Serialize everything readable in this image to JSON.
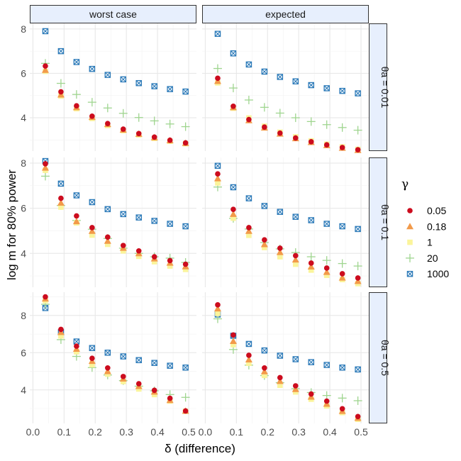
{
  "chart_data": {
    "type": "scatter",
    "xlabel": "δ (difference)",
    "ylabel": "log m for 80% power",
    "x_ticks": [
      "0.0",
      "0.1",
      "0.2",
      "0.3",
      "0.4",
      "0.5"
    ],
    "x_tick_values": [
      0.0,
      0.1,
      0.2,
      0.3,
      0.4,
      0.5
    ],
    "xlim": [
      -0.01,
      0.525
    ],
    "y_ticks": [
      "4",
      "6",
      "8"
    ],
    "y_tick_values": [
      4,
      6,
      8
    ],
    "legend": {
      "title": "γ",
      "position": "right",
      "entries": [
        {
          "label": "0.05",
          "color": "#cc0c1e",
          "shape": "circle"
        },
        {
          "label": "0.18",
          "color": "#f29a4a",
          "shape": "triangle"
        },
        {
          "label": "1",
          "color": "#fbf49b",
          "shape": "square"
        },
        {
          "label": "20",
          "color": "#9fd58f",
          "shape": "plus"
        },
        {
          "label": "1000",
          "color": "#2a79b8",
          "shape": "square-x"
        }
      ]
    },
    "x": [
      0.04,
      0.09,
      0.14,
      0.19,
      0.24,
      0.29,
      0.34,
      0.39,
      0.44,
      0.49
    ],
    "columns": [
      "worst case",
      "expected"
    ],
    "rows": [
      {
        "label": "θa = 0.01",
        "ylim": [
          2.5,
          8.25
        ]
      },
      {
        "label": "θa = 0.1",
        "ylim": [
          2.5,
          8.25
        ]
      },
      {
        "label": "θa = 0.5",
        "ylim": [
          2.2,
          9.25
        ]
      }
    ],
    "panels": [
      {
        "row": 0,
        "col": 0,
        "series": [
          {
            "name": "0.05",
            "values": [
              6.33,
              5.17,
              4.54,
              4.07,
              3.74,
              3.49,
              3.29,
              3.13,
              2.99,
              2.87
            ]
          },
          {
            "name": "0.18",
            "values": [
              6.15,
              5.04,
              4.47,
              4.03,
              3.71,
              3.46,
              3.27,
              3.11,
              2.98,
              2.86
            ]
          },
          {
            "name": "1",
            "values": [
              6.09,
              4.98,
              4.41,
              3.97,
              3.65,
              3.42,
              3.23,
              3.07,
              2.94,
              2.83
            ]
          },
          {
            "name": "20",
            "values": [
              6.45,
              5.55,
              5.05,
              4.7,
              4.44,
              4.2,
              4.01,
              3.86,
              3.72,
              3.6
            ]
          },
          {
            "name": "1000",
            "values": [
              7.9,
              7.0,
              6.51,
              6.2,
              5.93,
              5.73,
              5.56,
              5.42,
              5.29,
              5.18
            ]
          }
        ]
      },
      {
        "row": 0,
        "col": 1,
        "series": [
          {
            "name": "0.05",
            "values": [
              5.78,
              4.52,
              3.92,
              3.58,
              3.31,
              3.09,
              2.92,
              2.78,
              2.66,
              2.56
            ]
          },
          {
            "name": "0.18",
            "values": [
              5.65,
              4.47,
              3.88,
              3.55,
              3.28,
              3.07,
              2.9,
              2.76,
              2.64,
              2.54
            ]
          },
          {
            "name": "1",
            "values": [
              5.57,
              4.43,
              3.99,
              3.62,
              3.35,
              3.14,
              2.96,
              2.81,
              2.69,
              2.58
            ]
          },
          {
            "name": "20",
            "values": [
              6.22,
              5.34,
              4.8,
              4.47,
              4.21,
              4.0,
              3.83,
              3.69,
              3.56,
              3.44
            ]
          },
          {
            "name": "1000",
            "values": [
              7.78,
              6.9,
              6.4,
              6.08,
              5.84,
              5.64,
              5.47,
              5.33,
              5.21,
              5.1
            ]
          }
        ]
      },
      {
        "row": 1,
        "col": 0,
        "series": [
          {
            "name": "0.05",
            "values": [
              7.97,
              6.44,
              5.66,
              5.14,
              4.72,
              4.35,
              4.11,
              3.85,
              3.68,
              3.52
            ]
          },
          {
            "name": "0.18",
            "values": [
              7.79,
              6.24,
              5.42,
              4.99,
              4.55,
              4.24,
              4.0,
              3.77,
              3.58,
              3.42
            ]
          },
          {
            "name": "1",
            "values": [
              7.68,
              6.05,
              5.35,
              4.81,
              4.4,
              4.11,
              3.87,
              3.63,
              3.44,
              3.29
            ]
          },
          {
            "name": "20",
            "values": [
              7.42,
              6.12,
              5.46,
              5.07,
              4.66,
              4.23,
              4.0,
              3.85,
              3.79,
              3.6
            ]
          },
          {
            "name": "1000",
            "values": [
              8.09,
              7.09,
              6.57,
              6.27,
              5.96,
              5.74,
              5.59,
              5.44,
              5.31,
              5.2
            ]
          }
        ]
      },
      {
        "row": 1,
        "col": 1,
        "series": [
          {
            "name": "0.05",
            "values": [
              7.52,
              5.95,
              5.14,
              4.6,
              4.23,
              3.9,
              3.57,
              3.35,
              3.1,
              2.91
            ]
          },
          {
            "name": "0.18",
            "values": [
              7.32,
              5.74,
              4.99,
              4.4,
              4.05,
              3.72,
              3.41,
              3.17,
              2.92,
              2.77
            ]
          },
          {
            "name": "1",
            "values": [
              7.12,
              5.56,
              4.8,
              4.26,
              3.85,
              3.52,
              3.26,
              3.03,
              2.84,
              2.66
            ]
          },
          {
            "name": "20",
            "values": [
              6.94,
              5.55,
              5.08,
              4.48,
              4.2,
              4.04,
              3.85,
              3.69,
              3.55,
              3.44
            ]
          },
          {
            "name": "1000",
            "values": [
              7.88,
              6.93,
              6.44,
              6.1,
              5.84,
              5.62,
              5.47,
              5.31,
              5.2,
              5.08
            ]
          }
        ]
      },
      {
        "row": 2,
        "col": 0,
        "series": [
          {
            "name": "0.05",
            "values": [
              9.0,
              7.25,
              6.35,
              5.7,
              5.18,
              4.72,
              4.33,
              3.98,
              3.55,
              2.87
            ]
          },
          {
            "name": "0.18",
            "values": [
              8.9,
              7.1,
              6.2,
              5.55,
              5.0,
              4.6,
              4.2,
              3.9,
              3.45,
              2.87
            ]
          },
          {
            "name": "1",
            "values": [
              8.8,
              6.9,
              6.05,
              5.35,
              4.85,
              4.45,
              4.05,
              3.75,
              3.4,
              2.85
            ]
          },
          {
            "name": "20",
            "values": [
              8.6,
              6.7,
              5.8,
              5.2,
              4.8,
              4.5,
              4.2,
              3.95,
              3.75,
              3.6
            ]
          },
          {
            "name": "1000",
            "values": [
              8.4,
              7.1,
              6.6,
              6.25,
              6.0,
              5.8,
              5.6,
              5.45,
              5.3,
              5.2
            ]
          }
        ]
      },
      {
        "row": 2,
        "col": 1,
        "series": [
          {
            "name": "0.05",
            "values": [
              8.57,
              6.95,
              5.86,
              5.18,
              4.66,
              4.22,
              3.78,
              3.4,
              2.99,
              2.57
            ]
          },
          {
            "name": "0.18",
            "values": [
              8.37,
              6.62,
              5.63,
              4.99,
              4.47,
              4.04,
              3.63,
              3.25,
              2.86,
              2.49
            ]
          },
          {
            "name": "1",
            "values": [
              8.11,
              6.43,
              5.43,
              4.78,
              4.25,
              3.89,
              3.5,
              3.14,
              2.78,
              2.42
            ]
          },
          {
            "name": "20",
            "values": [
              7.82,
              6.17,
              5.33,
              4.77,
              4.39,
              4.07,
              3.86,
              3.7,
              3.56,
              3.42
            ]
          },
          {
            "name": "1000",
            "values": [
              8.05,
              6.91,
              6.47,
              6.12,
              5.84,
              5.65,
              5.49,
              5.34,
              5.2,
              5.1
            ]
          }
        ]
      }
    ]
  }
}
